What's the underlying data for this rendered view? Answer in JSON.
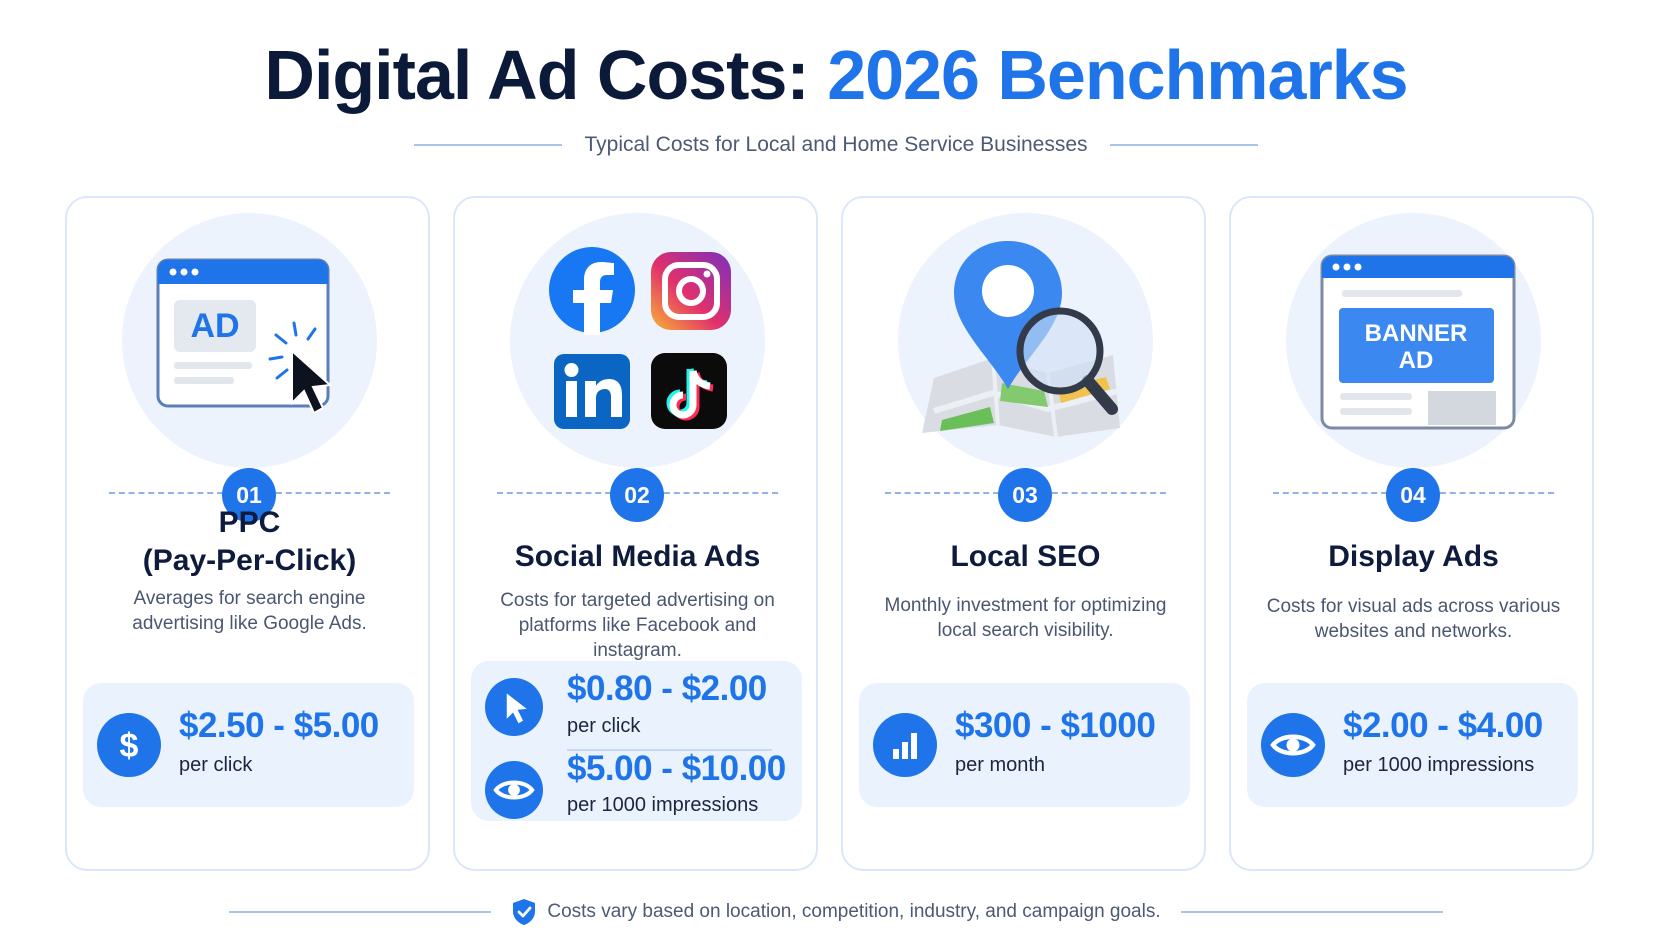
{
  "header": {
    "title_dark": "Digital Ad Costs:",
    "title_blue": "2026 Benchmarks",
    "subtitle": "Typical Costs for Local and Home Service Businesses"
  },
  "cards": [
    {
      "number": "01",
      "title_line1": "PPC",
      "title_line2": "(Pay-Per-Click)",
      "description": "Averages for search engine advertising like Google Ads.",
      "hero_text": "AD",
      "costs": [
        {
          "price": "$2.50 - $5.00",
          "unit": "per click",
          "icon": "dollar-icon"
        }
      ]
    },
    {
      "number": "02",
      "title": "Social Media Ads",
      "description": "Costs for targeted advertising on platforms like Facebook and instagram.",
      "costs": [
        {
          "price": "$0.80 - $2.00",
          "unit": "per click",
          "icon": "cursor-icon"
        },
        {
          "price": "$5.00 - $10.00",
          "unit": "per 1000 impressions",
          "icon": "eye-icon"
        }
      ]
    },
    {
      "number": "03",
      "title": "Local SEO",
      "description": "Monthly investment for optimizing local search visibility.",
      "costs": [
        {
          "price": "$300 - $1000",
          "unit": "per month",
          "icon": "bar-chart-icon"
        }
      ]
    },
    {
      "number": "04",
      "title": "Display Ads",
      "description": "Costs for visual ads across various websites and networks.",
      "hero_text_line1": "BANNER",
      "hero_text_line2": "AD",
      "costs": [
        {
          "price": "$2.00 - $4.00",
          "unit": "per 1000 impressions",
          "icon": "eye-icon"
        }
      ]
    }
  ],
  "footer": {
    "note": "Costs vary based on location, competition, industry, and campaign goals."
  },
  "colors": {
    "accent": "#1e74e8",
    "dark": "#0c1a3a",
    "panel": "#eaf2fd",
    "hero_bg": "#edf3fc"
  }
}
